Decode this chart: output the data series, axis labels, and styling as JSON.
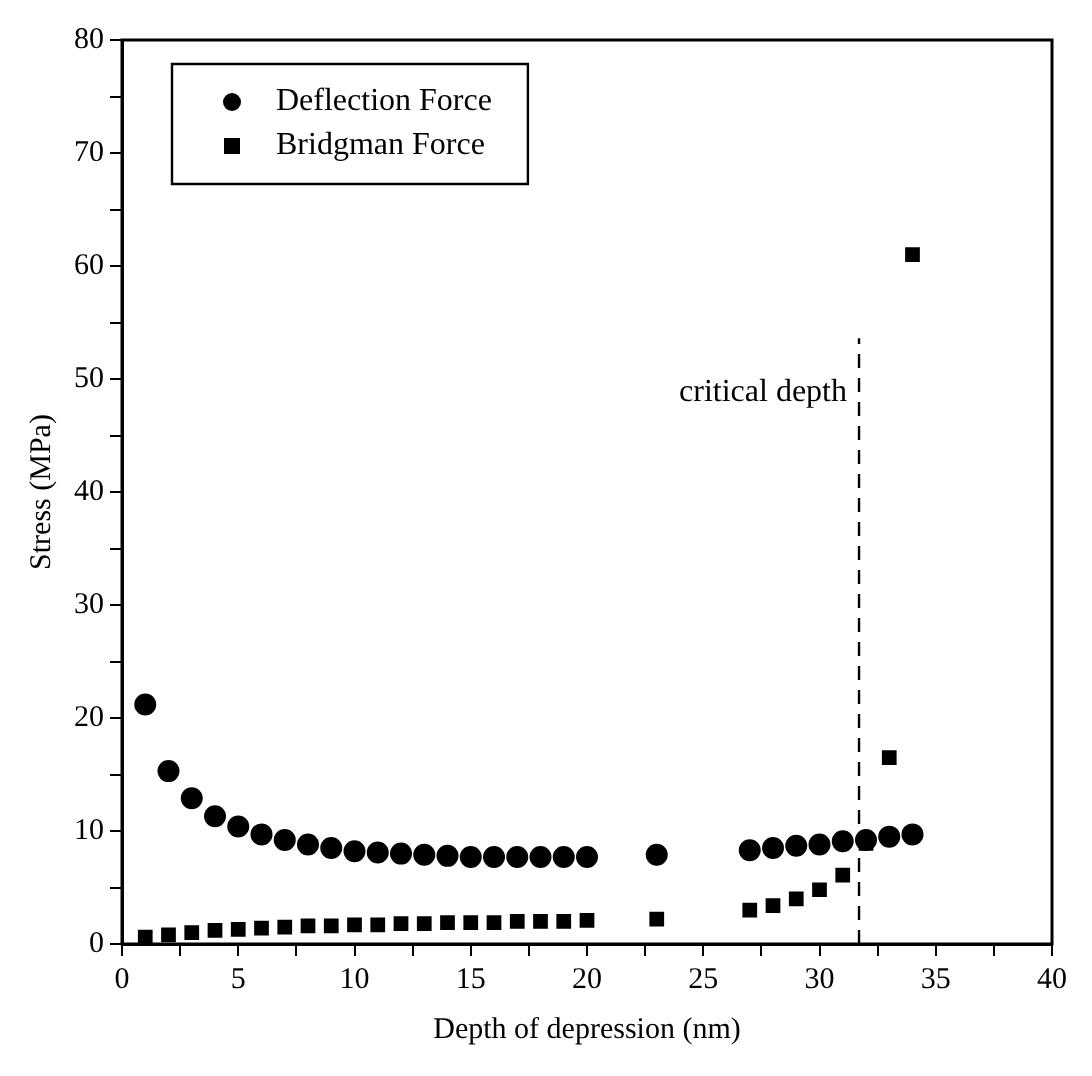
{
  "chart_data": {
    "type": "scatter",
    "xlabel": "Depth of depression (nm)",
    "ylabel": "Stress (MPa)",
    "xlim": [
      0,
      40
    ],
    "ylim": [
      0,
      80
    ],
    "xticks": [
      0,
      {
        "value": 2.5,
        "label": null
      },
      5,
      {
        "value": 7.5,
        "label": null
      },
      10,
      {
        "value": 12.5,
        "label": null
      },
      15,
      {
        "value": 17.5,
        "label": null
      },
      20,
      {
        "value": 22.5,
        "label": null
      },
      25,
      {
        "value": 27.5,
        "label": null
      },
      30,
      {
        "value": 32.5,
        "label": null
      },
      35,
      {
        "value": 37.5,
        "label": null
      },
      40
    ],
    "yticks": [
      0,
      {
        "value": 5,
        "label": null
      },
      10,
      {
        "value": 15,
        "label": null
      },
      20,
      {
        "value": 25,
        "label": null
      },
      30,
      {
        "value": 35,
        "label": null
      },
      40,
      {
        "value": 45,
        "label": null
      },
      50,
      {
        "value": 55,
        "label": null
      },
      60,
      {
        "value": 65,
        "label": null
      },
      70,
      {
        "value": 75,
        "label": null
      },
      80
    ],
    "grid": false,
    "legend": "top left",
    "x": [
      1,
      2,
      3,
      4,
      5,
      6,
      7,
      8,
      9,
      10,
      11,
      12,
      13,
      14,
      15,
      16,
      17,
      18,
      19,
      20,
      23,
      27,
      28,
      29,
      30,
      31,
      32,
      33,
      34
    ],
    "series": [
      {
        "name": "Deflection Force",
        "color": "#000000",
        "marker": "circle",
        "values": [
          21.2,
          15.3,
          12.9,
          11.3,
          10.4,
          9.7,
          9.2,
          8.8,
          8.5,
          8.2,
          8.1,
          8.0,
          7.9,
          7.8,
          7.7,
          7.7,
          7.7,
          7.7,
          7.7,
          7.7,
          7.9,
          8.3,
          8.5,
          8.7,
          8.8,
          9.1,
          9.2,
          9.5,
          9.7
        ]
      },
      {
        "name": "Bridgman Force",
        "color": "#000000",
        "marker": "square",
        "values": [
          0.6,
          0.8,
          1.0,
          1.2,
          1.3,
          1.4,
          1.5,
          1.6,
          1.6,
          1.7,
          1.7,
          1.8,
          1.8,
          1.9,
          1.9,
          1.9,
          2.0,
          2.0,
          2.0,
          2.1,
          2.2,
          3.0,
          3.4,
          4.0,
          4.8,
          6.1,
          8.9,
          16.5,
          61
        ]
      }
    ],
    "ref_lines": [
      {
        "axis": "x",
        "value": 31.7,
        "label": "critical depth",
        "line_style": "dashed",
        "color": "#000000"
      }
    ]
  }
}
